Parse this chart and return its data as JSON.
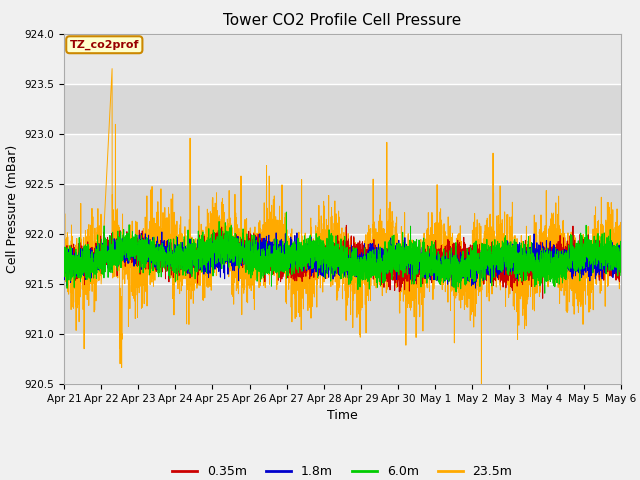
{
  "title": "Tower CO2 Profile Cell Pressure",
  "ylabel": "Cell Pressure (mBar)",
  "xlabel": "Time",
  "annotation": "TZ_co2prof",
  "ylim": [
    920.5,
    924.0
  ],
  "yticks": [
    920.5,
    921.0,
    921.5,
    922.0,
    922.5,
    923.0,
    923.5,
    924.0
  ],
  "n_days": 15,
  "n_points": 4320,
  "series": [
    {
      "label": "0.35m",
      "color": "#cc0000",
      "lw": 0.7,
      "zorder": 3
    },
    {
      "label": "1.8m",
      "color": "#0000cc",
      "lw": 0.7,
      "zorder": 4
    },
    {
      "label": "6.0m",
      "color": "#00cc00",
      "lw": 0.7,
      "zorder": 5
    },
    {
      "label": "23.5m",
      "color": "#ffaa00",
      "lw": 0.7,
      "zorder": 2
    }
  ],
  "xtick_labels": [
    "Apr 21",
    "Apr 22",
    "Apr 23",
    "Apr 24",
    "Apr 25",
    "Apr 26",
    "Apr 27",
    "Apr 28",
    "Apr 29",
    "Apr 30",
    "May 1",
    "May 2",
    "May 3",
    "May 4",
    "May 5",
    "May 6"
  ],
  "background_color": "#f0f0f0",
  "plot_bg_colors": [
    "#e8e8e8",
    "#d8d8d8"
  ],
  "grid_color": "#ffffff",
  "title_fontsize": 11,
  "label_fontsize": 9,
  "tick_fontsize": 7.5,
  "legend_fontsize": 9
}
